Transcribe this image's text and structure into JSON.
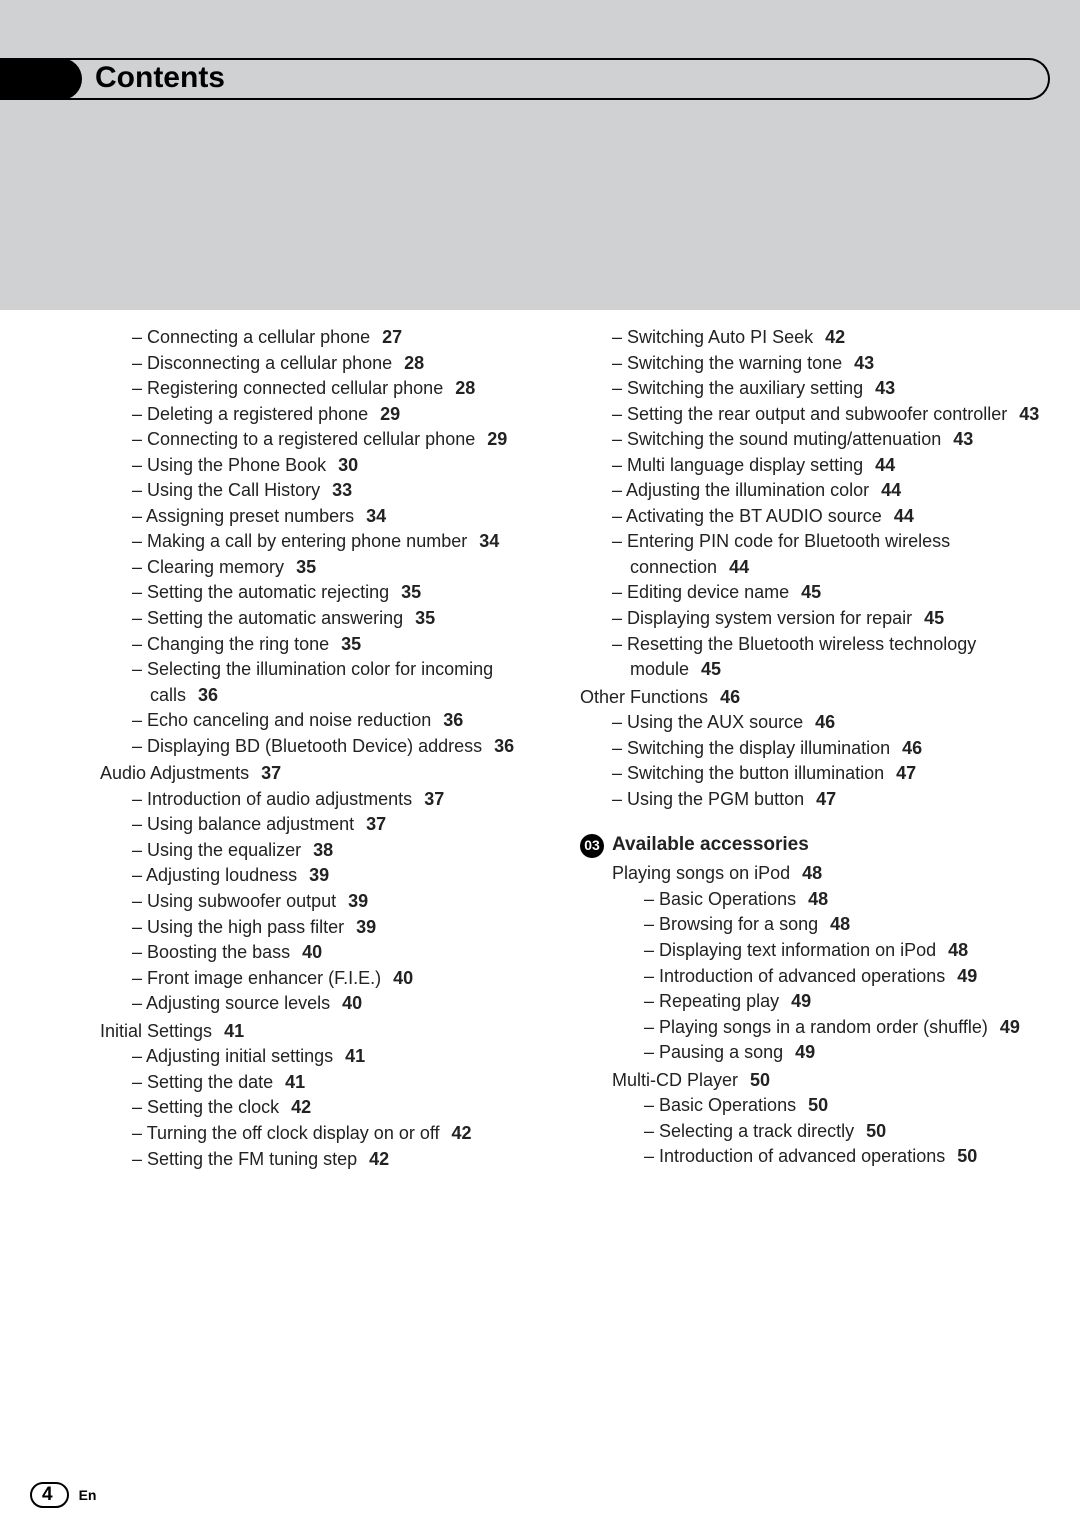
{
  "header": {
    "title": "Contents"
  },
  "footer": {
    "page": "4",
    "lang": "En"
  },
  "chapter": {
    "num": "03",
    "title": "Available accessories"
  },
  "left": {
    "s1": [
      {
        "t": "Connecting a cellular phone",
        "p": "27"
      },
      {
        "t": "Disconnecting a cellular phone",
        "p": "28"
      },
      {
        "t": "Registering connected cellular phone",
        "p": "28"
      },
      {
        "t": "Deleting a registered phone",
        "p": "29"
      },
      {
        "t": "Connecting to a registered cellular phone",
        "p": "29"
      },
      {
        "t": "Using the Phone Book",
        "p": "30"
      },
      {
        "t": "Using the Call History",
        "p": "33"
      },
      {
        "t": "Assigning preset numbers",
        "p": "34"
      },
      {
        "t": "Making a call by entering phone number",
        "p": "34"
      },
      {
        "t": "Clearing memory",
        "p": "35"
      },
      {
        "t": "Setting the automatic rejecting",
        "p": "35"
      },
      {
        "t": "Setting the automatic answering",
        "p": "35"
      },
      {
        "t": "Changing the ring tone",
        "p": "35"
      },
      {
        "t": "Selecting the illumination color for incoming calls",
        "p": "36"
      },
      {
        "t": "Echo canceling and noise reduction",
        "p": "36"
      },
      {
        "t": "Displaying BD (Bluetooth Device) address",
        "p": "36"
      }
    ],
    "h2": {
      "t": "Audio Adjustments",
      "p": "37"
    },
    "s2": [
      {
        "t": "Introduction of audio adjustments",
        "p": "37"
      },
      {
        "t": "Using balance adjustment",
        "p": "37"
      },
      {
        "t": "Using the equalizer",
        "p": "38"
      },
      {
        "t": "Adjusting loudness",
        "p": "39"
      },
      {
        "t": "Using subwoofer output",
        "p": "39"
      },
      {
        "t": "Using the high pass filter",
        "p": "39"
      },
      {
        "t": "Boosting the bass",
        "p": "40"
      },
      {
        "t": "Front image enhancer (F.I.E.)",
        "p": "40"
      },
      {
        "t": "Adjusting source levels",
        "p": "40"
      }
    ],
    "h3": {
      "t": "Initial Settings",
      "p": "41"
    },
    "s3": [
      {
        "t": "Adjusting initial settings",
        "p": "41"
      },
      {
        "t": "Setting the date",
        "p": "41"
      },
      {
        "t": "Setting the clock",
        "p": "42"
      },
      {
        "t": "Turning the off clock display on or off",
        "p": "42"
      },
      {
        "t": "Setting the FM tuning step",
        "p": "42"
      }
    ]
  },
  "right": {
    "s1": [
      {
        "t": "Switching Auto PI Seek",
        "p": "42"
      },
      {
        "t": "Switching the warning tone",
        "p": "43"
      },
      {
        "t": "Switching the auxiliary setting",
        "p": "43"
      },
      {
        "t": "Setting the rear output and subwoofer controller",
        "p": "43"
      },
      {
        "t": "Switching the sound muting/attenuation",
        "p": "43"
      },
      {
        "t": "Multi language display setting",
        "p": "44"
      },
      {
        "t": "Adjusting the illumination color",
        "p": "44"
      },
      {
        "t": "Activating the BT AUDIO source",
        "p": "44"
      },
      {
        "t": "Entering PIN code for Bluetooth wireless connection",
        "p": "44"
      },
      {
        "t": "Editing device name",
        "p": "45"
      },
      {
        "t": "Displaying system version for repair",
        "p": "45"
      },
      {
        "t": "Resetting the Bluetooth wireless technology module",
        "p": "45"
      }
    ],
    "h2": {
      "t": "Other Functions",
      "p": "46"
    },
    "s2": [
      {
        "t": "Using the AUX source",
        "p": "46"
      },
      {
        "t": "Switching the display illumination",
        "p": "46"
      },
      {
        "t": "Switching the button illumination",
        "p": "47"
      },
      {
        "t": "Using the PGM button",
        "p": "47"
      }
    ],
    "h3": {
      "t": "Playing songs on iPod",
      "p": "48"
    },
    "s3": [
      {
        "t": "Basic Operations",
        "p": "48"
      },
      {
        "t": "Browsing for a song",
        "p": "48"
      },
      {
        "t": "Displaying text information on iPod",
        "p": "48"
      },
      {
        "t": "Introduction of advanced operations",
        "p": "49"
      },
      {
        "t": "Repeating play",
        "p": "49"
      },
      {
        "t": "Playing songs in a random order (shuffle)",
        "p": "49"
      },
      {
        "t": "Pausing a song",
        "p": "49"
      }
    ],
    "h4": {
      "t": "Multi-CD Player",
      "p": "50"
    },
    "s4": [
      {
        "t": "Basic Operations",
        "p": "50"
      },
      {
        "t": "Selecting a track directly",
        "p": "50"
      },
      {
        "t": "Introduction of advanced operations",
        "p": "50"
      }
    ]
  }
}
